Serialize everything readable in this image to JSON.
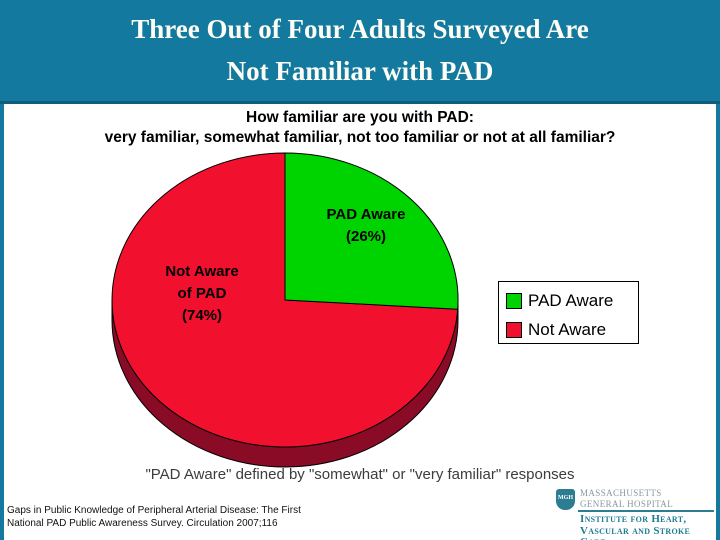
{
  "slide": {
    "title_line1": "Three Out of Four Adults Surveyed Are",
    "title_line2": "Not Familiar with PAD",
    "subtitle_line1": "How familiar are you with PAD:",
    "subtitle_line2": "very familiar, somewhat familiar, not too familiar or not at all familiar?",
    "caption": "\"PAD Aware\" defined by \"somewhat\" or \"very familiar\" responses",
    "citation_line1": "Gaps in Public Knowledge of Peripheral Arterial Disease: The First",
    "citation_line2": "National PAD Public Awareness Survey.  Circulation 2007;116"
  },
  "chart_data": {
    "type": "pie",
    "style": "3d",
    "title": "How familiar are you with PAD: very familiar, somewhat familiar, not too familiar or not at all familiar?",
    "labels": [
      "PAD Aware",
      "Not Aware of PAD"
    ],
    "values": [
      26,
      74
    ],
    "slice_colors": [
      "#00D400",
      "#F2102F"
    ],
    "depth_color": "#8A0B26",
    "start_angle_deg": -90,
    "direction": "clockwise",
    "legend": {
      "position": "right",
      "items": [
        {
          "label": "PAD Aware",
          "color": "#00D400"
        },
        {
          "label": "Not Aware",
          "color": "#F2102F"
        }
      ]
    },
    "slice_annotations": {
      "aware_line1": "PAD Aware",
      "aware_line2": "(26%)",
      "notaware_line1": "Not Aware",
      "notaware_line2": "of PAD",
      "notaware_line3": "(74%)"
    }
  },
  "logo": {
    "shield_text": "MGH",
    "hospital_line1": "MASSACHUSETTS",
    "hospital_line2": "GENERAL HOSPITAL",
    "institute_line1": "Institute for Heart,",
    "institute_line2": "Vascular and Stroke Care"
  },
  "colors": {
    "header_teal": "#14799E",
    "header_border": "#0E5E7C",
    "institute_teal": "#1F7D92",
    "hospital_gray": "#8A95A1"
  }
}
